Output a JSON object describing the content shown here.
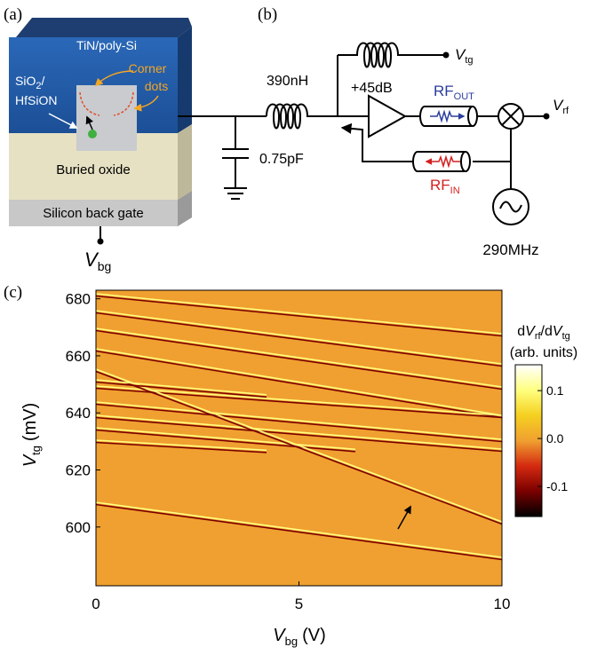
{
  "panel_a": {
    "label": "(a)",
    "gate": "TiN/poly-Si",
    "dielectric": {
      "main": "SiO",
      "sub": "2",
      "rest": "/",
      "line2": "HfSiON"
    },
    "corner_dots": {
      "line1": "Corner",
      "line2": "dots"
    },
    "buried_oxide": "Buried oxide",
    "back_gate": "Silicon back gate",
    "vbg": {
      "main": "V",
      "sub": "bg"
    }
  },
  "panel_b": {
    "label": "(b)",
    "inductor": "390nH",
    "capacitor": "0.75pF",
    "amplifier": "+45dB",
    "rf_out": {
      "main": "RF",
      "sub": "OUT"
    },
    "rf_in": {
      "main": "RF",
      "sub": "IN"
    },
    "vtg": {
      "main": "V",
      "sub": "tg"
    },
    "vrf": {
      "main": "V",
      "sub": "rf"
    },
    "source": "290MHz"
  },
  "chart_data": {
    "type": "heatmap",
    "label": "(c)",
    "xlabel": {
      "main": "V",
      "sub": "bg",
      "unit": "(V)"
    },
    "ylabel": {
      "main": "V",
      "sub": "tg",
      "unit": "(mV)"
    },
    "xlim": [
      0,
      10
    ],
    "xticks": [
      0,
      5,
      10
    ],
    "ylim": [
      579.4,
      683
    ],
    "yticks": [
      600,
      620,
      640,
      660,
      680
    ],
    "colorbar": {
      "label": {
        "d1": "d",
        "v1": "V",
        "sub1": "rf",
        "d2": "/d",
        "v2": "V",
        "sub2": "tg"
      },
      "units": "(arb. units)",
      "clim": [
        -0.163,
        0.154
      ],
      "ticks": [
        0.1,
        {
          "value": 0,
          "label": "0.0"
        },
        -0.1
      ],
      "colors": [
        "#000000",
        "#7a0000",
        "#d42a10",
        "#f0a030",
        "#f5d020",
        "#ffff80",
        "#ffffff"
      ]
    }
  }
}
